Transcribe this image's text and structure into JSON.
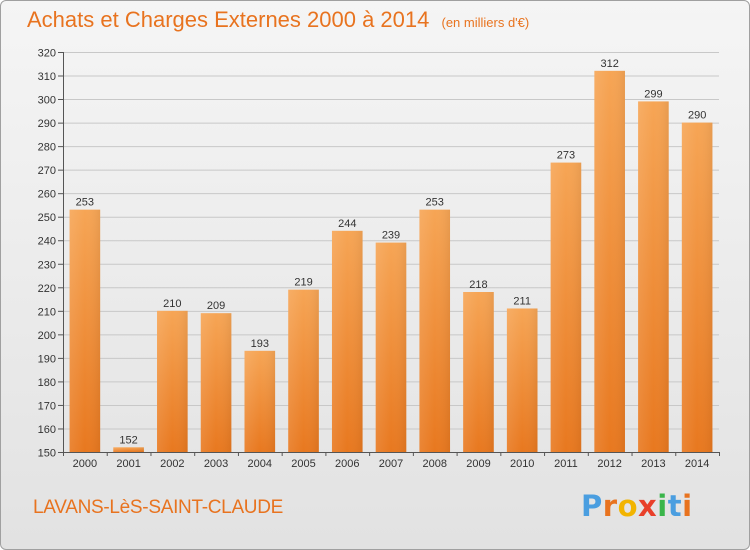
{
  "header": {
    "title": "Achats et Charges Externes 2000 à 2014",
    "subtitle": "(en milliers d'€)"
  },
  "footer": {
    "city": "LAVANS-LèS-SAINT-CLAUDE",
    "brand_letters": [
      "P",
      "r",
      "o",
      "x",
      "i",
      "t",
      "i"
    ]
  },
  "colors": {
    "bar_light": "#f6a555",
    "bar_dark": "#e8781f",
    "accent": "#e8731f",
    "brand": [
      "#4a9ee0",
      "#e8731f",
      "#f2b400",
      "#e8402a",
      "#3ab54a",
      "#4a9ee0",
      "#e8731f"
    ]
  },
  "chart_data": {
    "type": "bar",
    "title": "Achats et Charges Externes 2000 à 2014",
    "subtitle": "(en milliers d'€)",
    "categories": [
      "2000",
      "2001",
      "2002",
      "2003",
      "2004",
      "2005",
      "2006",
      "2007",
      "2008",
      "2009",
      "2010",
      "2011",
      "2012",
      "2013",
      "2014"
    ],
    "values": [
      253,
      152,
      210,
      209,
      193,
      219,
      244,
      239,
      253,
      218,
      211,
      273,
      312,
      299,
      290
    ],
    "ylim": [
      150,
      320
    ],
    "yticks": [
      150,
      160,
      170,
      180,
      190,
      200,
      210,
      220,
      230,
      240,
      250,
      260,
      270,
      280,
      290,
      300,
      310,
      320
    ],
    "grid": true,
    "xlabel": "",
    "ylabel": ""
  }
}
